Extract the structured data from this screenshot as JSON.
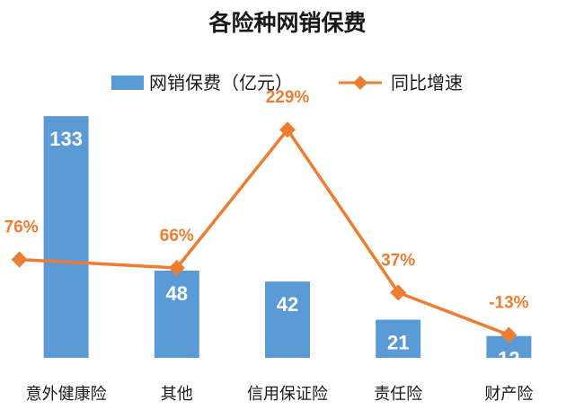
{
  "chart_data": {
    "type": "bar",
    "title": "各险种网销保费",
    "categories": [
      "意外健康险",
      "其他",
      "信用保证险",
      "责任险",
      "财产险"
    ],
    "series": [
      {
        "name": "网销保费（亿元）",
        "type": "bar",
        "axis": "left",
        "values": [
          133,
          48,
          42,
          21,
          12
        ],
        "labels": [
          "133",
          "48",
          "42",
          "21",
          "12"
        ],
        "color": "#5B9BD5"
      },
      {
        "name": "同比增速",
        "type": "line",
        "axis": "right",
        "marker": "diamond",
        "values": [
          76,
          66,
          229,
          37,
          -13
        ],
        "labels": [
          "76%",
          "66%",
          "229%",
          "37%",
          "-13%"
        ],
        "color": "#ED7D31"
      }
    ],
    "ylim": [
      0,
      140
    ],
    "ylim_right": [
      -40,
      260
    ],
    "grid": false,
    "legend": "top"
  }
}
